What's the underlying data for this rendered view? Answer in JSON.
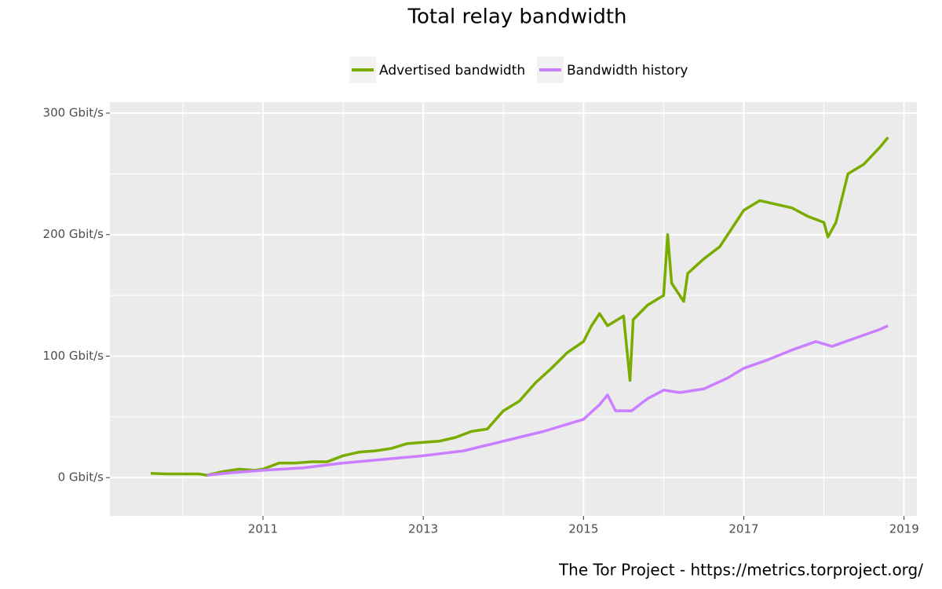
{
  "chart_data": {
    "type": "line",
    "title": "Total relay bandwidth",
    "caption": "The Tor Project - https://metrics.torproject.org/",
    "series": [
      {
        "name": "Advertised bandwidth",
        "color": "#7aac00",
        "x": [
          2009.6,
          2009.8,
          2010.0,
          2010.2,
          2010.3,
          2010.5,
          2010.7,
          2010.9,
          2011.0,
          2011.2,
          2011.4,
          2011.6,
          2011.8,
          2012.0,
          2012.2,
          2012.4,
          2012.6,
          2012.8,
          2013.0,
          2013.2,
          2013.4,
          2013.6,
          2013.8,
          2014.0,
          2014.2,
          2014.4,
          2014.6,
          2014.8,
          2015.0,
          2015.1,
          2015.2,
          2015.3,
          2015.5,
          2015.58,
          2015.62,
          2015.8,
          2016.0,
          2016.05,
          2016.1,
          2016.25,
          2016.3,
          2016.5,
          2016.7,
          2016.9,
          2017.0,
          2017.2,
          2017.4,
          2017.6,
          2017.8,
          2018.0,
          2018.05,
          2018.15,
          2018.3,
          2018.5,
          2018.7,
          2018.8
        ],
        "values": [
          3.5,
          3,
          3,
          3,
          2,
          5,
          7,
          6,
          7,
          12,
          12,
          13,
          13,
          18,
          21,
          22,
          24,
          28,
          29,
          30,
          33,
          38,
          40,
          55,
          63,
          78,
          90,
          103,
          112,
          125,
          135,
          125,
          133,
          80,
          130,
          142,
          150,
          200,
          160,
          145,
          168,
          180,
          190,
          210,
          220,
          228,
          225,
          222,
          215,
          210,
          198,
          210,
          250,
          258,
          272,
          280
        ]
      },
      {
        "name": "Bandwidth history",
        "color": "#c97fff",
        "x": [
          2010.3,
          2010.6,
          2011.0,
          2011.5,
          2012.0,
          2012.5,
          2013.0,
          2013.5,
          2014.0,
          2014.5,
          2015.0,
          2015.2,
          2015.3,
          2015.4,
          2015.6,
          2015.8,
          2016.0,
          2016.2,
          2016.5,
          2016.8,
          2017.0,
          2017.3,
          2017.6,
          2017.9,
          2018.1,
          2018.4,
          2018.7,
          2018.8
        ],
        "values": [
          2,
          4,
          6,
          8,
          12,
          15,
          18,
          22,
          30,
          38,
          48,
          60,
          68,
          55,
          55,
          65,
          72,
          70,
          73,
          82,
          90,
          97,
          105,
          112,
          108,
          115,
          122,
          125
        ]
      }
    ],
    "xlim": [
      2009.09,
      2019.16
    ],
    "xticks": [
      2011,
      2013,
      2015,
      2017,
      2019
    ],
    "ylim": [
      -15.4,
      300
    ],
    "yticks": [
      {
        "value": 0,
        "label": "0 Gbit/s"
      },
      {
        "value": 100,
        "label": "100 Gbit/s"
      },
      {
        "value": 200,
        "label": "200 Gbit/s"
      },
      {
        "value": 300,
        "label": "300 Gbit/s"
      }
    ],
    "grid": true
  }
}
